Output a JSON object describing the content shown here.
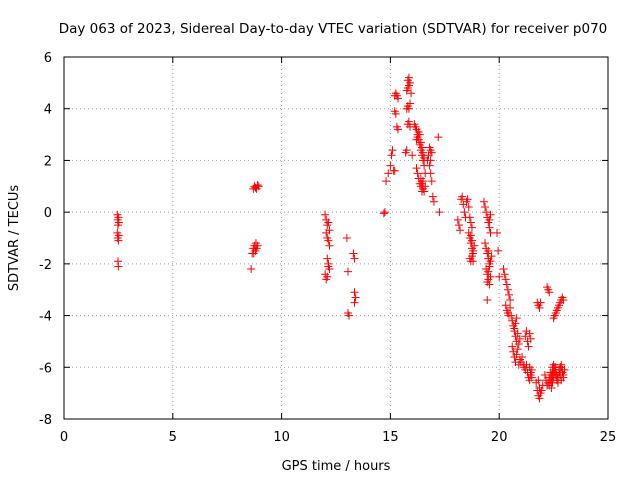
{
  "chart_data": {
    "type": "scatter",
    "title": "Day 063 of 2023, Sidereal Day-to-day VTEC variation (SDTVAR) for receiver p070",
    "xlabel": "GPS time / hours",
    "ylabel": "SDTVAR / TECUs",
    "xlim": [
      0,
      25
    ],
    "ylim": [
      -8,
      6
    ],
    "xticks": [
      0,
      5,
      10,
      15,
      20,
      25
    ],
    "yticks": [
      -8,
      -6,
      -4,
      -2,
      0,
      2,
      4,
      6
    ],
    "grid": true,
    "marker": "+",
    "series": [
      {
        "name": "SDTVAR",
        "color": "#ff0000",
        "x": [
          2.45,
          2.47,
          2.48,
          2.5,
          2.52,
          2.45,
          2.47,
          2.5,
          2.52,
          2.48,
          2.5,
          8.6,
          8.65,
          8.7,
          8.75,
          8.8,
          8.85,
          8.9,
          8.7,
          8.75,
          8.8,
          8.85,
          8.9,
          8.95,
          8.72,
          8.82,
          12.0,
          12.05,
          12.1,
          12.15,
          12.2,
          12.05,
          12.1,
          12.15,
          12.2,
          12.1,
          12.15,
          12.2,
          12.0,
          12.05,
          12.1,
          12.15,
          13.0,
          13.05,
          13.1,
          13.05,
          13.3,
          13.35,
          13.35,
          13.4,
          13.35,
          14.7,
          14.75,
          14.8,
          14.9,
          15.0,
          15.05,
          15.1,
          15.15,
          15.2,
          15.25,
          15.3,
          15.35,
          15.2,
          15.25,
          15.3,
          15.35,
          15.2,
          15.7,
          15.75,
          15.8,
          15.85,
          15.9,
          15.75,
          15.8,
          15.85,
          15.9,
          15.75,
          15.8,
          15.85,
          15.8,
          15.85,
          15.9,
          15.95,
          16.0,
          16.1,
          16.15,
          16.2,
          16.25,
          16.3,
          16.35,
          16.4,
          16.45,
          16.5,
          16.55,
          16.6,
          16.4,
          16.45,
          16.5,
          16.55,
          16.6,
          16.2,
          16.25,
          16.3,
          16.35,
          16.4,
          16.45,
          16.5,
          16.55,
          16.2,
          16.25,
          16.3,
          16.35,
          16.4,
          16.45,
          16.5,
          16.7,
          16.75,
          16.8,
          16.85,
          16.9,
          16.95,
          17.0,
          16.8,
          16.85,
          16.9,
          16.85,
          17.2,
          17.25,
          18.1,
          18.15,
          18.2,
          18.25,
          18.3,
          18.35,
          18.4,
          18.45,
          18.5,
          18.55,
          18.6,
          18.65,
          18.7,
          18.75,
          18.6,
          18.65,
          18.7,
          18.75,
          18.8,
          18.65,
          18.7,
          18.75,
          18.8,
          18.85,
          18.7,
          18.75,
          18.8,
          19.3,
          19.35,
          19.4,
          19.45,
          19.5,
          19.55,
          19.6,
          19.35,
          19.4,
          19.45,
          19.5,
          19.55,
          19.4,
          19.45,
          19.5,
          19.55,
          19.6,
          19.45,
          19.5,
          19.55,
          19.6,
          19.65,
          19.5,
          19.55,
          19.6,
          19.45,
          19.9,
          19.95,
          20.0,
          20.2,
          20.25,
          20.3,
          20.35,
          20.4,
          20.45,
          20.5,
          20.3,
          20.35,
          20.4,
          20.45,
          20.5,
          20.55,
          20.6,
          20.65,
          20.7,
          20.75,
          20.8,
          20.6,
          20.65,
          20.7,
          20.75,
          20.8,
          20.85,
          20.9,
          20.95,
          20.7,
          20.75,
          20.8,
          20.85,
          20.9,
          20.95,
          21.0,
          21.05,
          21.1,
          21.15,
          21.2,
          21.25,
          21.3,
          21.35,
          21.4,
          21.45,
          21.5,
          21.2,
          21.25,
          21.3,
          21.35,
          21.4,
          21.45,
          21.4,
          21.45,
          21.5,
          21.8,
          21.85,
          21.9,
          21.95,
          22.0,
          21.75,
          21.8,
          21.85,
          21.9,
          21.7,
          21.75,
          21.8,
          21.85,
          22.1,
          22.15,
          22.2,
          22.25,
          22.3,
          22.35,
          22.4,
          22.45,
          22.5,
          22.55,
          22.6,
          22.65,
          22.7,
          22.75,
          22.8,
          22.85,
          22.9,
          22.95,
          23.0,
          22.4,
          22.45,
          22.5,
          22.55,
          22.6,
          22.65,
          22.7,
          22.75,
          22.8,
          22.85,
          22.9,
          22.3,
          22.35,
          22.4,
          22.45,
          22.5,
          22.55,
          22.6,
          22.65,
          22.7,
          22.75,
          22.8,
          22.85,
          22.9,
          22.95,
          22.2,
          22.25,
          22.3,
          22.5,
          22.55,
          22.6,
          22.65,
          22.7,
          22.75,
          22.8,
          22.85,
          22.9,
          22.95
        ],
        "y": [
          -0.1,
          -0.3,
          -0.5,
          -0.2,
          -0.4,
          -0.8,
          -1.0,
          -1.1,
          -0.9,
          -1.9,
          -2.1,
          -2.2,
          -1.6,
          -1.4,
          -1.3,
          -1.5,
          -1.4,
          -1.3,
          0.9,
          1.0,
          0.95,
          0.9,
          1.05,
          1.0,
          -1.6,
          -1.2,
          -0.1,
          -0.3,
          -0.5,
          -0.4,
          -0.7,
          -0.8,
          -1.0,
          -1.1,
          -1.3,
          -1.8,
          -2.0,
          -2.2,
          -2.4,
          -2.6,
          -2.5,
          -2.1,
          -1.0,
          -2.3,
          -4.0,
          -3.9,
          -1.6,
          -1.8,
          -3.1,
          -3.3,
          -3.5,
          -0.05,
          0.0,
          1.2,
          1.5,
          1.8,
          2.2,
          2.4,
          1.6,
          4.5,
          4.6,
          4.5,
          4.4,
          3.9,
          3.8,
          3.3,
          3.2,
          1.6,
          2.3,
          2.4,
          3.4,
          3.5,
          3.3,
          4.0,
          4.1,
          4.0,
          4.2,
          4.7,
          4.8,
          4.9,
          5.1,
          5.2,
          5.0,
          4.6,
          2.2,
          3.4,
          3.3,
          3.2,
          3.0,
          2.8,
          2.6,
          2.4,
          2.2,
          2.0,
          1.8,
          1.5,
          1.3,
          1.1,
          0.9,
          0.8,
          1.0,
          2.8,
          2.9,
          3.1,
          3.0,
          2.7,
          2.5,
          2.3,
          2.1,
          1.7,
          1.5,
          1.3,
          1.1,
          1.0,
          0.8,
          1.2,
          2.0,
          2.2,
          1.8,
          1.5,
          1.2,
          0.6,
          0.4,
          2.5,
          2.4,
          2.3,
          2.0,
          2.9,
          0.0,
          -0.3,
          -0.5,
          -0.7,
          0.5,
          0.6,
          0.3,
          0.0,
          -0.2,
          0.4,
          0.5,
          0.2,
          -0.2,
          -0.4,
          -0.6,
          -0.8,
          -1.0,
          -1.2,
          -1.4,
          -1.6,
          -1.8,
          -1.9,
          -1.7,
          -1.5,
          -1.3,
          -0.9,
          -1.1,
          -1.9,
          0.4,
          0.2,
          0.0,
          -0.2,
          -0.4,
          -0.6,
          -0.8,
          -1.2,
          -1.4,
          -1.6,
          -1.8,
          -2.0,
          -2.2,
          -2.4,
          -2.6,
          -2.8,
          -2.5,
          -2.7,
          -2.3,
          -2.1,
          -1.9,
          -1.7,
          -1.5,
          -0.3,
          -0.1,
          -3.4,
          -0.8,
          -1.5,
          -2.5,
          -2.2,
          -2.4,
          -2.6,
          -2.8,
          -3.0,
          -3.2,
          -3.4,
          -3.6,
          -3.8,
          -3.9,
          -4.0,
          -3.7,
          -4.0,
          -4.2,
          -4.4,
          -4.6,
          -4.8,
          -5.0,
          -5.2,
          -5.4,
          -5.6,
          -5.8,
          -5.5,
          -5.3,
          -5.1,
          -4.9,
          -4.5,
          -4.3,
          -4.1,
          -4.7,
          -5.9,
          -5.7,
          -5.8,
          -5.6,
          -5.9,
          -6.0,
          -6.1,
          -5.9,
          -6.2,
          -6.4,
          -6.5,
          -6.3,
          -6.1,
          -4.8,
          -4.6,
          -5.0,
          -5.2,
          -4.7,
          -4.9,
          -6.0,
          -6.2,
          -6.4,
          -6.5,
          -6.8,
          -7.0,
          -6.9,
          -6.7,
          -3.5,
          -3.6,
          -3.7,
          -3.5,
          -6.6,
          -6.9,
          -7.1,
          -7.2,
          -6.3,
          -6.5,
          -6.7,
          -6.6,
          -6.4,
          -6.2,
          -6.8,
          -6.6,
          -6.4,
          -6.2,
          -6.0,
          -6.3,
          -6.5,
          -6.1,
          -6.3,
          -6.0,
          -6.2,
          -6.4,
          -6.1,
          -6.5,
          -6.3,
          -6.1,
          -6.0,
          -6.2,
          -6.4,
          -6.6,
          -6.1,
          -6.3,
          -6.5,
          -6.2,
          -6.7,
          -6.5,
          -6.3,
          -6.0,
          -5.9,
          -6.1,
          -6.3,
          -6.5,
          -6.4,
          -6.2,
          -6.0,
          -5.9,
          -6.1,
          -6.3,
          -2.9,
          -3.0,
          -3.1,
          -4.1,
          -4.0,
          -3.9,
          -3.8,
          -3.7,
          -3.6,
          -3.5,
          -3.4,
          -3.3,
          -3.4
        ]
      }
    ]
  }
}
